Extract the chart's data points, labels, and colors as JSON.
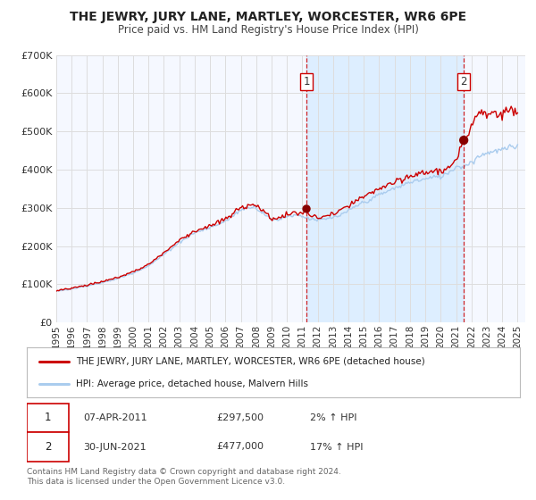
{
  "title": "THE JEWRY, JURY LANE, MARTLEY, WORCESTER, WR6 6PE",
  "subtitle": "Price paid vs. HM Land Registry's House Price Index (HPI)",
  "legend_line1": "THE JEWRY, JURY LANE, MARTLEY, WORCESTER, WR6 6PE (detached house)",
  "legend_line2": "HPI: Average price, detached house, Malvern Hills",
  "footnote1": "Contains HM Land Registry data © Crown copyright and database right 2024.",
  "footnote2": "This data is licensed under the Open Government Licence v3.0.",
  "annotation1_date": "07-APR-2011",
  "annotation1_price": "£297,500",
  "annotation1_hpi": "2% ↑ HPI",
  "annotation2_date": "30-JUN-2021",
  "annotation2_price": "£477,000",
  "annotation2_hpi": "17% ↑ HPI",
  "vline1_x": 2011.27,
  "vline2_x": 2021.5,
  "dot1_x": 2011.27,
  "dot1_y": 297500,
  "dot2_x": 2021.5,
  "dot2_y": 477000,
  "price_line_color": "#cc0000",
  "hpi_line_color": "#aaccee",
  "vline_color": "#cc0000",
  "dot_color": "#880000",
  "background_color": "#ffffff",
  "chart_bg_color": "#f5f8ff",
  "shade_color": "#ddeeff",
  "grid_color": "#dddddd",
  "ylim": [
    0,
    700000
  ],
  "xlim": [
    1995.0,
    2025.5
  ],
  "yticks": [
    0,
    100000,
    200000,
    300000,
    400000,
    500000,
    600000,
    700000
  ],
  "ytick_labels": [
    "£0",
    "£100K",
    "£200K",
    "£300K",
    "£400K",
    "£500K",
    "£600K",
    "£700K"
  ],
  "xticks": [
    1995,
    1996,
    1997,
    1998,
    1999,
    2000,
    2001,
    2002,
    2003,
    2004,
    2005,
    2006,
    2007,
    2008,
    2009,
    2010,
    2011,
    2012,
    2013,
    2014,
    2015,
    2016,
    2017,
    2018,
    2019,
    2020,
    2021,
    2022,
    2023,
    2024,
    2025
  ]
}
